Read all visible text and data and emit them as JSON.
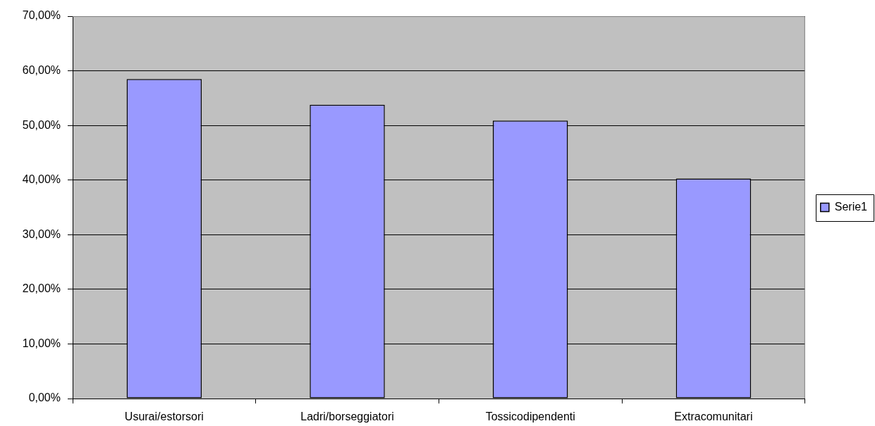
{
  "chart_data": {
    "type": "bar",
    "categories": [
      "Usurai/estorsori",
      "Ladri/borseggiatori",
      "Tossicodipendenti",
      "Extracomunitari"
    ],
    "series": [
      {
        "name": "Serie1",
        "color": "#9999ff",
        "values": [
          58.5,
          53.8,
          50.9,
          40.3
        ]
      }
    ],
    "ylim": [
      0,
      70
    ],
    "yticks": [
      {
        "value": 0,
        "label": "0,00%"
      },
      {
        "value": 10,
        "label": "10,00%"
      },
      {
        "value": 20,
        "label": "20,00%"
      },
      {
        "value": 30,
        "label": "30,00%"
      },
      {
        "value": 40,
        "label": "40,00%"
      },
      {
        "value": 50,
        "label": "50,00%"
      },
      {
        "value": 60,
        "label": "60,00%"
      },
      {
        "value": 70,
        "label": "70,00%"
      }
    ],
    "grid": "y",
    "legend": "right"
  }
}
